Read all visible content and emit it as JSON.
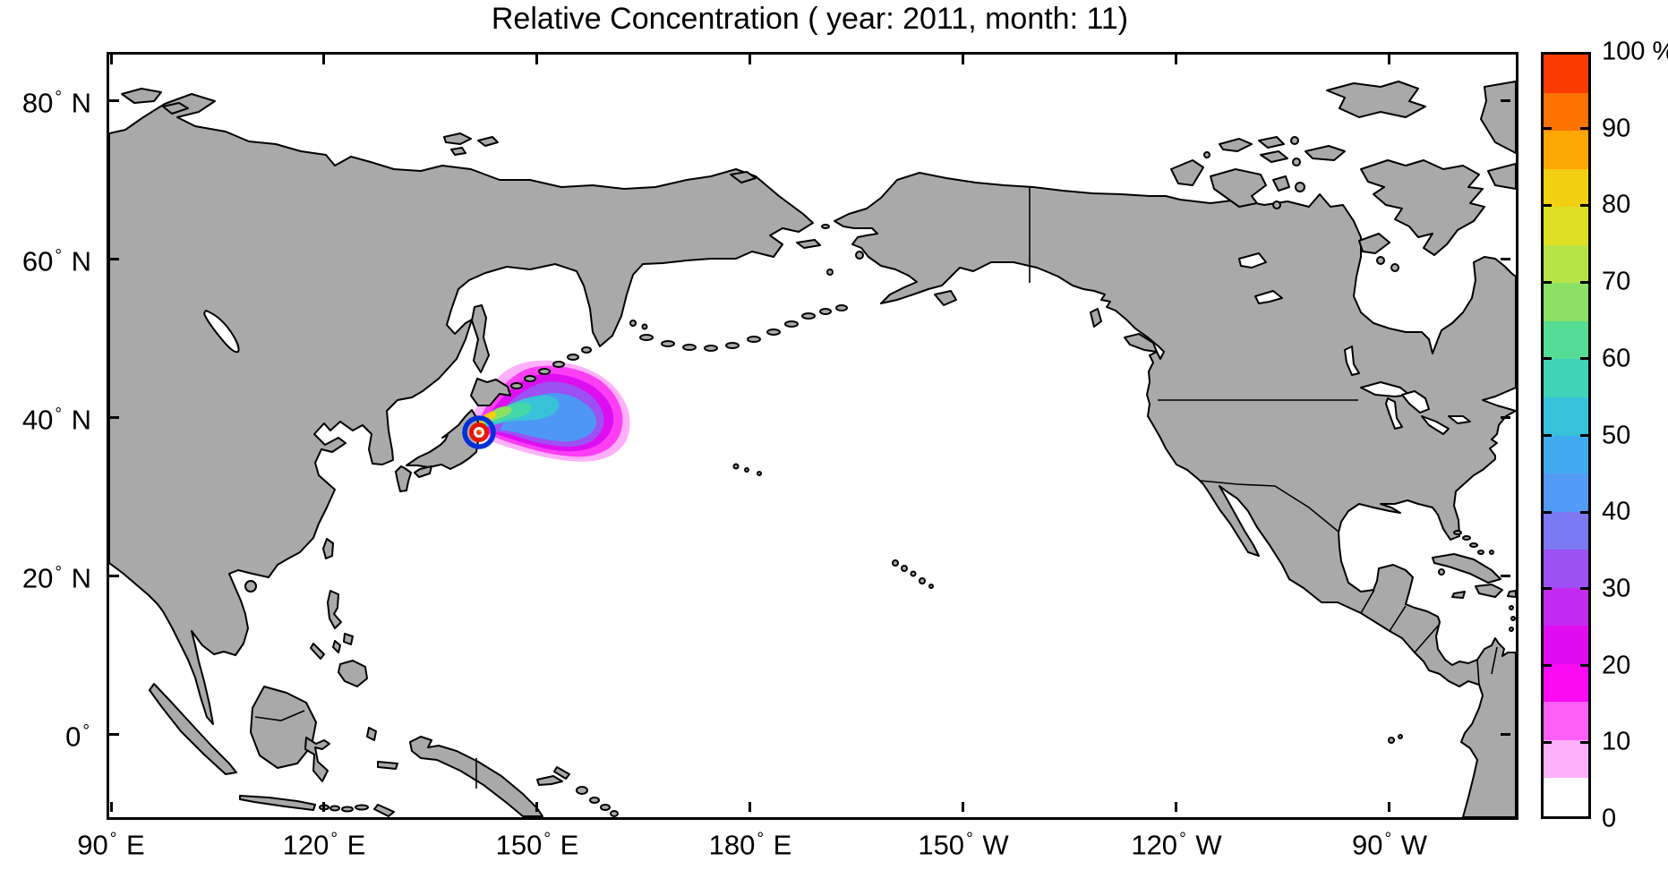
{
  "title": "Relative Concentration ( year: 2011, month: 11)",
  "axes": {
    "lon_ticks": [
      {
        "lon_e": 90,
        "num": "90",
        "dir": "E"
      },
      {
        "lon_e": 120,
        "num": "120",
        "dir": "E"
      },
      {
        "lon_e": 150,
        "num": "150",
        "dir": "E"
      },
      {
        "lon_e": 180,
        "num": "180",
        "dir": "E"
      },
      {
        "lon_e": 210,
        "num": "150",
        "dir": "W"
      },
      {
        "lon_e": 240,
        "num": "120",
        "dir": "W"
      },
      {
        "lon_e": 270,
        "num": "90",
        "dir": "W"
      }
    ],
    "lat_ticks": [
      {
        "lat_n": 80,
        "num": "80",
        "dir": "N"
      },
      {
        "lat_n": 60,
        "num": "60",
        "dir": "N"
      },
      {
        "lat_n": 40,
        "num": "40",
        "dir": "N"
      },
      {
        "lat_n": 20,
        "num": "20",
        "dir": "N"
      },
      {
        "lat_n": 0,
        "num": "0",
        "dir": ""
      }
    ]
  },
  "colorbar": {
    "ticks": [
      {
        "value": 100,
        "label": "100 %"
      },
      {
        "value": 90,
        "label": "90"
      },
      {
        "value": 80,
        "label": "80"
      },
      {
        "value": 70,
        "label": "70"
      },
      {
        "value": 60,
        "label": "60"
      },
      {
        "value": 50,
        "label": "50"
      },
      {
        "value": 40,
        "label": "40"
      },
      {
        "value": 30,
        "label": "30"
      },
      {
        "value": 20,
        "label": "20"
      },
      {
        "value": 10,
        "label": "10"
      },
      {
        "value": 0,
        "label": "0"
      }
    ],
    "bands": [
      {
        "from": 0,
        "to": 5,
        "color": "#ffffff"
      },
      {
        "from": 5,
        "to": 10,
        "color": "#ffb0fa"
      },
      {
        "from": 10,
        "to": 15,
        "color": "#ff5ef7"
      },
      {
        "from": 15,
        "to": 20,
        "color": "#fb0af3"
      },
      {
        "from": 20,
        "to": 25,
        "color": "#e00cf0"
      },
      {
        "from": 25,
        "to": 30,
        "color": "#c32af1"
      },
      {
        "from": 30,
        "to": 35,
        "color": "#9d50f3"
      },
      {
        "from": 35,
        "to": 40,
        "color": "#7d78f4"
      },
      {
        "from": 40,
        "to": 45,
        "color": "#539af5"
      },
      {
        "from": 45,
        "to": 50,
        "color": "#3fabef"
      },
      {
        "from": 50,
        "to": 55,
        "color": "#38c2da"
      },
      {
        "from": 55,
        "to": 60,
        "color": "#41d3b8"
      },
      {
        "from": 60,
        "to": 65,
        "color": "#55dc95"
      },
      {
        "from": 65,
        "to": 70,
        "color": "#8ce164"
      },
      {
        "from": 70,
        "to": 75,
        "color": "#b8e346"
      },
      {
        "from": 75,
        "to": 80,
        "color": "#dcdf26"
      },
      {
        "from": 80,
        "to": 85,
        "color": "#f2cf10"
      },
      {
        "from": 85,
        "to": 90,
        "color": "#fda704"
      },
      {
        "from": 90,
        "to": 95,
        "color": "#fc7301"
      },
      {
        "from": 95,
        "to": 100,
        "color": "#f93b00"
      }
    ]
  },
  "map": {
    "land_color": "#a9a9a9",
    "coast_color": "#000000",
    "source_marker": {
      "lon_e": 141.2,
      "lat_n": 37.8,
      "outer_ring_color": "#0030d8",
      "inner_ring_color": "#e81500",
      "center_color": "#ff3300",
      "center_hot_color": "#ff9900"
    },
    "plume_levels": [
      {
        "pct": 5,
        "color": "#ffb0fa"
      },
      {
        "pct": 12,
        "color": "#fd3ef5"
      },
      {
        "pct": 20,
        "color": "#dd0ef0"
      },
      {
        "pct": 32,
        "color": "#9d50f3"
      },
      {
        "pct": 42,
        "color": "#4f97f4"
      },
      {
        "pct": 52,
        "color": "#38c2da"
      },
      {
        "pct": 60,
        "color": "#45d6a9"
      },
      {
        "pct": 68,
        "color": "#8ce164"
      },
      {
        "pct": 80,
        "color": "#f2cf10"
      }
    ]
  },
  "chart_data": {
    "type": "heatmap",
    "title": "Relative Concentration ( year: 2011, month: 11)",
    "projection": "equirectangular",
    "lon_axis": {
      "ticks_deg_e": [
        90,
        120,
        150,
        180,
        210,
        240,
        270
      ],
      "tick_labels": [
        "90 E",
        "120 E",
        "150 E",
        "180 E",
        "150 W",
        "120 W",
        "90 W"
      ],
      "range_deg_e": [
        89,
        287
      ]
    },
    "lat_axis": {
      "ticks_deg_n": [
        80,
        60,
        40,
        20,
        0
      ],
      "tick_labels": [
        "80 N",
        "60 N",
        "40 N",
        "20 N",
        "0"
      ],
      "range_deg_n": [
        -10,
        86
      ]
    },
    "colorbar": {
      "unit": "%",
      "min": 0,
      "max": 100,
      "tick_step": 10,
      "n_bands": 20,
      "band_width_pct": 5,
      "position": "right"
    },
    "source_point": {
      "lon_e": 141.2,
      "lat_n": 37.8,
      "value_pct": 100,
      "marker": "bullseye (blue outer ring, red inner ring, red-orange core)"
    },
    "plume_extent": {
      "lon_e_min": 140.3,
      "lon_e_max": 163,
      "lat_n_min": 35,
      "lat_n_max": 47
    },
    "plume_structure": [
      {
        "level_pct": 5,
        "note": "outer pale-pink teardrop from Japanese coast east to ~163E"
      },
      {
        "level_pct": 20,
        "note": "bright magenta band filling most of the teardrop"
      },
      {
        "level_pct": 40,
        "note": "blue core centered near 149E, 40N"
      },
      {
        "level_pct": 60,
        "note": "cyan-teal streak from source northeast into the core"
      },
      {
        "level_pct": 80,
        "note": "small yellow-green patch hugging the coast at the source"
      },
      {
        "level_pct": 100,
        "note": "red-orange cells only at the release point"
      }
    ],
    "land_rendering": "gray filled continents with black coastlines (Asia, Alaska, North and Central America, Arctic islands, SE Asia, New Guinea)"
  }
}
